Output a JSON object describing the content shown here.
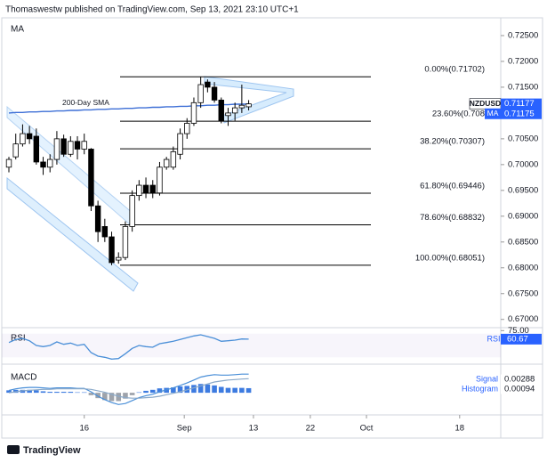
{
  "header": "Thomaswestw published on TradingView.com, Sep 13, 2021 23:10 UTC+1",
  "footer": "TradingView",
  "chart_data": [
    {
      "type": "candlestick",
      "indicator_label": "MA",
      "symbol": "NZDUSD",
      "ma_tag": "MA",
      "up_color": "#ffffff",
      "down_color": "#000000",
      "x": [
        0,
        1,
        2,
        3,
        4,
        5,
        6,
        7,
        8,
        9,
        10,
        11,
        12,
        13,
        14,
        15,
        16,
        17,
        18,
        19,
        20,
        21,
        22,
        23,
        24,
        25,
        26,
        27,
        28,
        29,
        30,
        31,
        32,
        33,
        34,
        35
      ],
      "open": [
        0.6995,
        0.7015,
        0.704,
        0.706,
        0.7055,
        0.7005,
        0.6995,
        0.701,
        0.705,
        0.702,
        0.7045,
        0.703,
        0.703,
        0.692,
        0.688,
        0.686,
        0.6815,
        0.682,
        0.688,
        0.694,
        0.696,
        0.696,
        0.6945,
        0.6995,
        0.6995,
        0.702,
        0.706,
        0.708,
        0.712,
        0.716,
        0.715,
        0.7125,
        0.7095,
        0.71,
        0.711,
        0.7112
      ],
      "high": [
        0.7015,
        0.706,
        0.7078,
        0.7075,
        0.707,
        0.7015,
        0.702,
        0.7065,
        0.7058,
        0.7055,
        0.7055,
        0.706,
        0.7032,
        0.693,
        0.6895,
        0.687,
        0.683,
        0.689,
        0.695,
        0.697,
        0.6975,
        0.697,
        0.7005,
        0.7015,
        0.7035,
        0.707,
        0.709,
        0.713,
        0.717,
        0.7165,
        0.716,
        0.713,
        0.711,
        0.712,
        0.7155,
        0.7125
      ],
      "low": [
        0.6985,
        0.701,
        0.7035,
        0.704,
        0.7,
        0.698,
        0.6985,
        0.7,
        0.7015,
        0.7015,
        0.701,
        0.702,
        0.691,
        0.685,
        0.685,
        0.6805,
        0.6808,
        0.6815,
        0.687,
        0.693,
        0.6935,
        0.6935,
        0.694,
        0.699,
        0.699,
        0.701,
        0.705,
        0.7075,
        0.711,
        0.714,
        0.712,
        0.708,
        0.7075,
        0.7085,
        0.71,
        0.7105
      ],
      "close": [
        0.701,
        0.704,
        0.706,
        0.705,
        0.7005,
        0.6995,
        0.701,
        0.705,
        0.702,
        0.7045,
        0.703,
        0.7045,
        0.692,
        0.687,
        0.686,
        0.681,
        0.682,
        0.688,
        0.694,
        0.696,
        0.6945,
        0.6945,
        0.6995,
        0.701,
        0.7025,
        0.706,
        0.708,
        0.712,
        0.7155,
        0.715,
        0.7125,
        0.7085,
        0.71,
        0.711,
        0.7115,
        0.71177
      ],
      "sma": {
        "name": "200-Day SMA",
        "color": "#3d6fd6",
        "values": [
          0.71,
          0.7101,
          0.7101,
          0.7102,
          0.7102,
          0.7103,
          0.7103,
          0.7104,
          0.7104,
          0.7105,
          0.7105,
          0.7106,
          0.7106,
          0.7107,
          0.7107,
          0.7108,
          0.7108,
          0.7109,
          0.7109,
          0.711,
          0.711,
          0.7111,
          0.7111,
          0.7112,
          0.7112,
          0.7113,
          0.7113,
          0.7114,
          0.7114,
          0.7115,
          0.7115,
          0.7116,
          0.7116,
          0.7117,
          0.7117,
          0.71175
        ]
      },
      "fib_levels": [
        {
          "value": 0.71702,
          "label": "0.00%(0.71702)"
        },
        {
          "value": 0.7084,
          "label": "23.60%(0.708"
        },
        {
          "value": 0.70307,
          "label": "38.20%(0.70307)"
        },
        {
          "value": 0.69446,
          "label": "61.80%(0.69446)"
        },
        {
          "value": 0.68832,
          "label": "78.60%(0.68832)"
        },
        {
          "value": 0.68051,
          "label": "100.00%(0.68051)"
        }
      ],
      "xlim": [
        -1.3,
        71.8
      ],
      "ylim": [
        0.6684,
        0.7281
      ],
      "yticks": [
        {
          "value": 0.725,
          "label": "0.72500"
        },
        {
          "value": 0.72,
          "label": "0.72000"
        },
        {
          "value": 0.715,
          "label": "0.71500"
        },
        {
          "value": 0.71,
          "label": "0.71000"
        },
        {
          "value": 0.705,
          "label": "0.70500"
        },
        {
          "value": 0.7,
          "label": "0.70000"
        },
        {
          "value": 0.695,
          "label": "0.69500"
        },
        {
          "value": 0.69,
          "label": "0.69000"
        },
        {
          "value": 0.685,
          "label": "0.68500"
        },
        {
          "value": 0.68,
          "label": "0.68000"
        },
        {
          "value": 0.675,
          "label": "0.67500"
        },
        {
          "value": 0.67,
          "label": "0.67000"
        }
      ],
      "xticks": [
        {
          "value": 11,
          "label": "16"
        },
        {
          "value": 25.6,
          "label": "Sep"
        },
        {
          "value": 35.7,
          "label": "13"
        },
        {
          "value": 44,
          "label": "22"
        },
        {
          "value": 52.2,
          "label": "Oct"
        },
        {
          "value": 65.8,
          "label": "18"
        }
      ],
      "grid": false
    },
    {
      "type": "line",
      "title": "RSI",
      "color": "#4a8fd8",
      "values": [
        55,
        60,
        62,
        58,
        50,
        48,
        50,
        56,
        52,
        54,
        50,
        52,
        38,
        32,
        30,
        27,
        28,
        36,
        45,
        50,
        48,
        47,
        53,
        55,
        57,
        60,
        63,
        66,
        68,
        65,
        62,
        57,
        58,
        59,
        61,
        60.67
      ],
      "ylim": [
        20,
        80
      ],
      "yticks": [
        {
          "value": 75,
          "label": "75.00"
        }
      ]
    },
    {
      "type": "macd",
      "title": "MACD",
      "macd": {
        "color": "#4a8fd8",
        "values": [
          0.0005,
          0.0008,
          0.001,
          0.0011,
          0.0011,
          0.001,
          0.0009,
          0.001,
          0.001,
          0.001,
          0.0009,
          0.0009,
          0.0002,
          -0.0007,
          -0.0014,
          -0.002,
          -0.0024,
          -0.0022,
          -0.0016,
          -0.001,
          -0.0006,
          -0.0003,
          0.0002,
          0.0006,
          0.001,
          0.0015,
          0.002,
          0.0026,
          0.0032,
          0.0035,
          0.0037,
          0.0036,
          0.0036,
          0.0037,
          0.0038,
          0.00381
        ]
      },
      "signal": {
        "name": "Signal",
        "color": "#8aa9c9",
        "values": [
          0.0,
          0.0002,
          0.0004,
          0.0005,
          0.0006,
          0.0007,
          0.0007,
          0.0008,
          0.0008,
          0.0008,
          0.0008,
          0.0008,
          0.0007,
          0.0004,
          0.0001,
          -0.0003,
          -0.0007,
          -0.001,
          -0.0011,
          -0.0011,
          -0.001,
          -0.0009,
          -0.0007,
          -0.0004,
          -0.0001,
          0.0002,
          0.0006,
          0.001,
          0.0014,
          0.0018,
          0.0022,
          0.0024,
          0.0026,
          0.0027,
          0.0028,
          0.00288
        ]
      },
      "histogram": {
        "name": "Histogram",
        "positive_color": "#3d7be0",
        "negative_color": "#9ea3ab",
        "values": [
          0.0005,
          0.0006,
          0.0006,
          0.0006,
          0.0005,
          0.0003,
          0.0002,
          0.0002,
          0.0002,
          0.0002,
          0.0001,
          0.0001,
          -0.0005,
          -0.0011,
          -0.0015,
          -0.0017,
          -0.0017,
          -0.0012,
          -0.0005,
          0.0001,
          0.0004,
          0.0006,
          0.0009,
          0.001,
          0.0011,
          0.0013,
          0.0014,
          0.0016,
          0.0018,
          0.0017,
          0.0015,
          0.0012,
          0.001,
          0.001,
          0.001,
          0.00094
        ]
      },
      "ylim": [
        -0.0038,
        0.0053
      ]
    }
  ]
}
